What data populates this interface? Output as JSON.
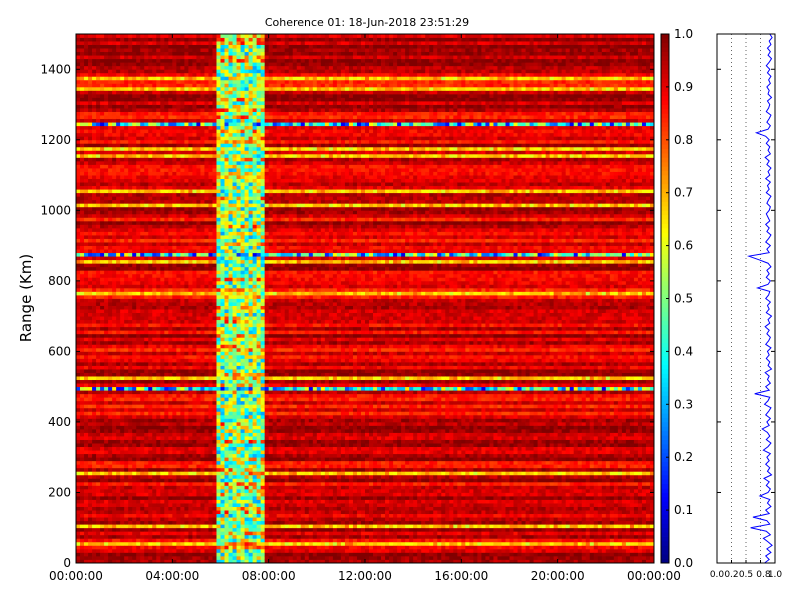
{
  "chart_data": [
    {
      "type": "heatmap",
      "title": "Coherence 01: 18-Jun-2018 23:51:29",
      "xlabel": "",
      "ylabel": "Range (Km)",
      "x_tick_labels": [
        "00:00:00",
        "04:00:00",
        "08:00:00",
        "12:00:00",
        "16:00:00",
        "20:00:00",
        "00:00:00"
      ],
      "x_range_hours": [
        0,
        24
      ],
      "y_tick_labels": [
        "0",
        "200",
        "400",
        "600",
        "800",
        "1000",
        "1200",
        "1400"
      ],
      "ylim": [
        0,
        1500
      ],
      "value_range": [
        0,
        1
      ],
      "colormap": "jet",
      "colorbar_ticks": [
        "0.0",
        "0.1",
        "0.2",
        "0.3",
        "0.4",
        "0.5",
        "0.6",
        "0.7",
        "0.8",
        "0.9",
        "1.0"
      ],
      "summary": {
        "background_coherence": [
          0.82,
          1.0
        ],
        "low_coherence_period_hours": [
          5.9,
          7.9
        ],
        "low_coherence_ranges_km": [
          1243,
          872,
          495
        ]
      }
    },
    {
      "type": "line",
      "xlabel": "",
      "ylabel": "",
      "x_tick_labels": [
        "0.0",
        "0.2",
        "0.5",
        "0.8",
        "1.0"
      ],
      "xlim": [
        0,
        1
      ],
      "ylim": [
        0,
        1500
      ],
      "x_gridlines": [
        0.25,
        0.5,
        0.75
      ],
      "profile_range_km": [
        0,
        10,
        20,
        30,
        40,
        50,
        60,
        70,
        80,
        90,
        100,
        110,
        120,
        130,
        140,
        150,
        160,
        170,
        180,
        190,
        200,
        210,
        220,
        230,
        240,
        250,
        260,
        270,
        280,
        290,
        300,
        310,
        320,
        330,
        340,
        350,
        360,
        370,
        380,
        390,
        400,
        410,
        420,
        430,
        440,
        450,
        460,
        470,
        480,
        490,
        500,
        510,
        520,
        530,
        540,
        550,
        560,
        570,
        580,
        590,
        600,
        610,
        620,
        630,
        640,
        650,
        660,
        670,
        680,
        690,
        700,
        710,
        720,
        730,
        740,
        750,
        760,
        770,
        780,
        790,
        800,
        810,
        820,
        830,
        840,
        850,
        860,
        870,
        880,
        890,
        900,
        910,
        920,
        930,
        940,
        950,
        960,
        970,
        980,
        990,
        1000,
        1010,
        1020,
        1030,
        1040,
        1050,
        1060,
        1070,
        1080,
        1090,
        1100,
        1110,
        1120,
        1130,
        1140,
        1150,
        1160,
        1170,
        1180,
        1190,
        1200,
        1210,
        1220,
        1230,
        1240,
        1250,
        1260,
        1270,
        1280,
        1290,
        1300,
        1310,
        1320,
        1330,
        1340,
        1350,
        1360,
        1370,
        1380,
        1390,
        1400,
        1410,
        1420,
        1430,
        1440,
        1450,
        1460,
        1470,
        1480,
        1490,
        1500
      ],
      "profile_coherence": [
        0.82,
        0.9,
        0.84,
        0.93,
        0.86,
        0.95,
        0.88,
        0.8,
        0.92,
        0.85,
        0.58,
        0.91,
        0.86,
        0.62,
        0.9,
        0.84,
        0.93,
        0.87,
        0.91,
        0.74,
        0.88,
        0.92,
        0.85,
        0.9,
        0.81,
        0.94,
        0.87,
        0.91,
        0.84,
        0.9,
        0.86,
        0.92,
        0.8,
        0.88,
        0.93,
        0.85,
        0.91,
        0.87,
        0.78,
        0.9,
        0.86,
        0.92,
        0.84,
        0.89,
        0.93,
        0.82,
        0.88,
        0.91,
        0.65,
        0.9,
        0.84,
        0.92,
        0.87,
        0.9,
        0.83,
        0.94,
        0.88,
        0.91,
        0.85,
        0.9,
        0.87,
        0.93,
        0.84,
        0.89,
        0.92,
        0.86,
        0.9,
        0.83,
        0.91,
        0.88,
        0.94,
        0.85,
        0.9,
        0.87,
        0.92,
        0.84,
        0.89,
        0.91,
        0.7,
        0.88,
        0.92,
        0.85,
        0.9,
        0.86,
        0.93,
        0.88,
        0.72,
        0.55,
        0.9,
        0.86,
        0.92,
        0.84,
        0.89,
        0.93,
        0.86,
        0.9,
        0.84,
        0.91,
        0.88,
        0.85,
        0.9,
        0.92,
        0.86,
        0.89,
        0.93,
        0.85,
        0.9,
        0.87,
        0.92,
        0.84,
        0.91,
        0.88,
        0.93,
        0.86,
        0.9,
        0.83,
        0.92,
        0.88,
        0.91,
        0.85,
        0.9,
        0.84,
        0.68,
        0.88,
        0.92,
        0.86,
        0.9,
        0.93,
        0.85,
        0.89,
        0.91,
        0.87,
        0.94,
        0.88,
        0.9,
        0.86,
        0.92,
        0.89,
        0.93,
        0.87,
        0.91,
        0.85,
        0.9,
        0.94,
        0.88,
        0.92,
        0.87,
        0.93,
        0.9,
        0.95,
        0.91
      ]
    }
  ],
  "colorbar": {
    "tick_labels": [
      "0.0",
      "0.1",
      "0.2",
      "0.3",
      "0.4",
      "0.5",
      "0.6",
      "0.7",
      "0.8",
      "0.9",
      "1.0"
    ]
  }
}
